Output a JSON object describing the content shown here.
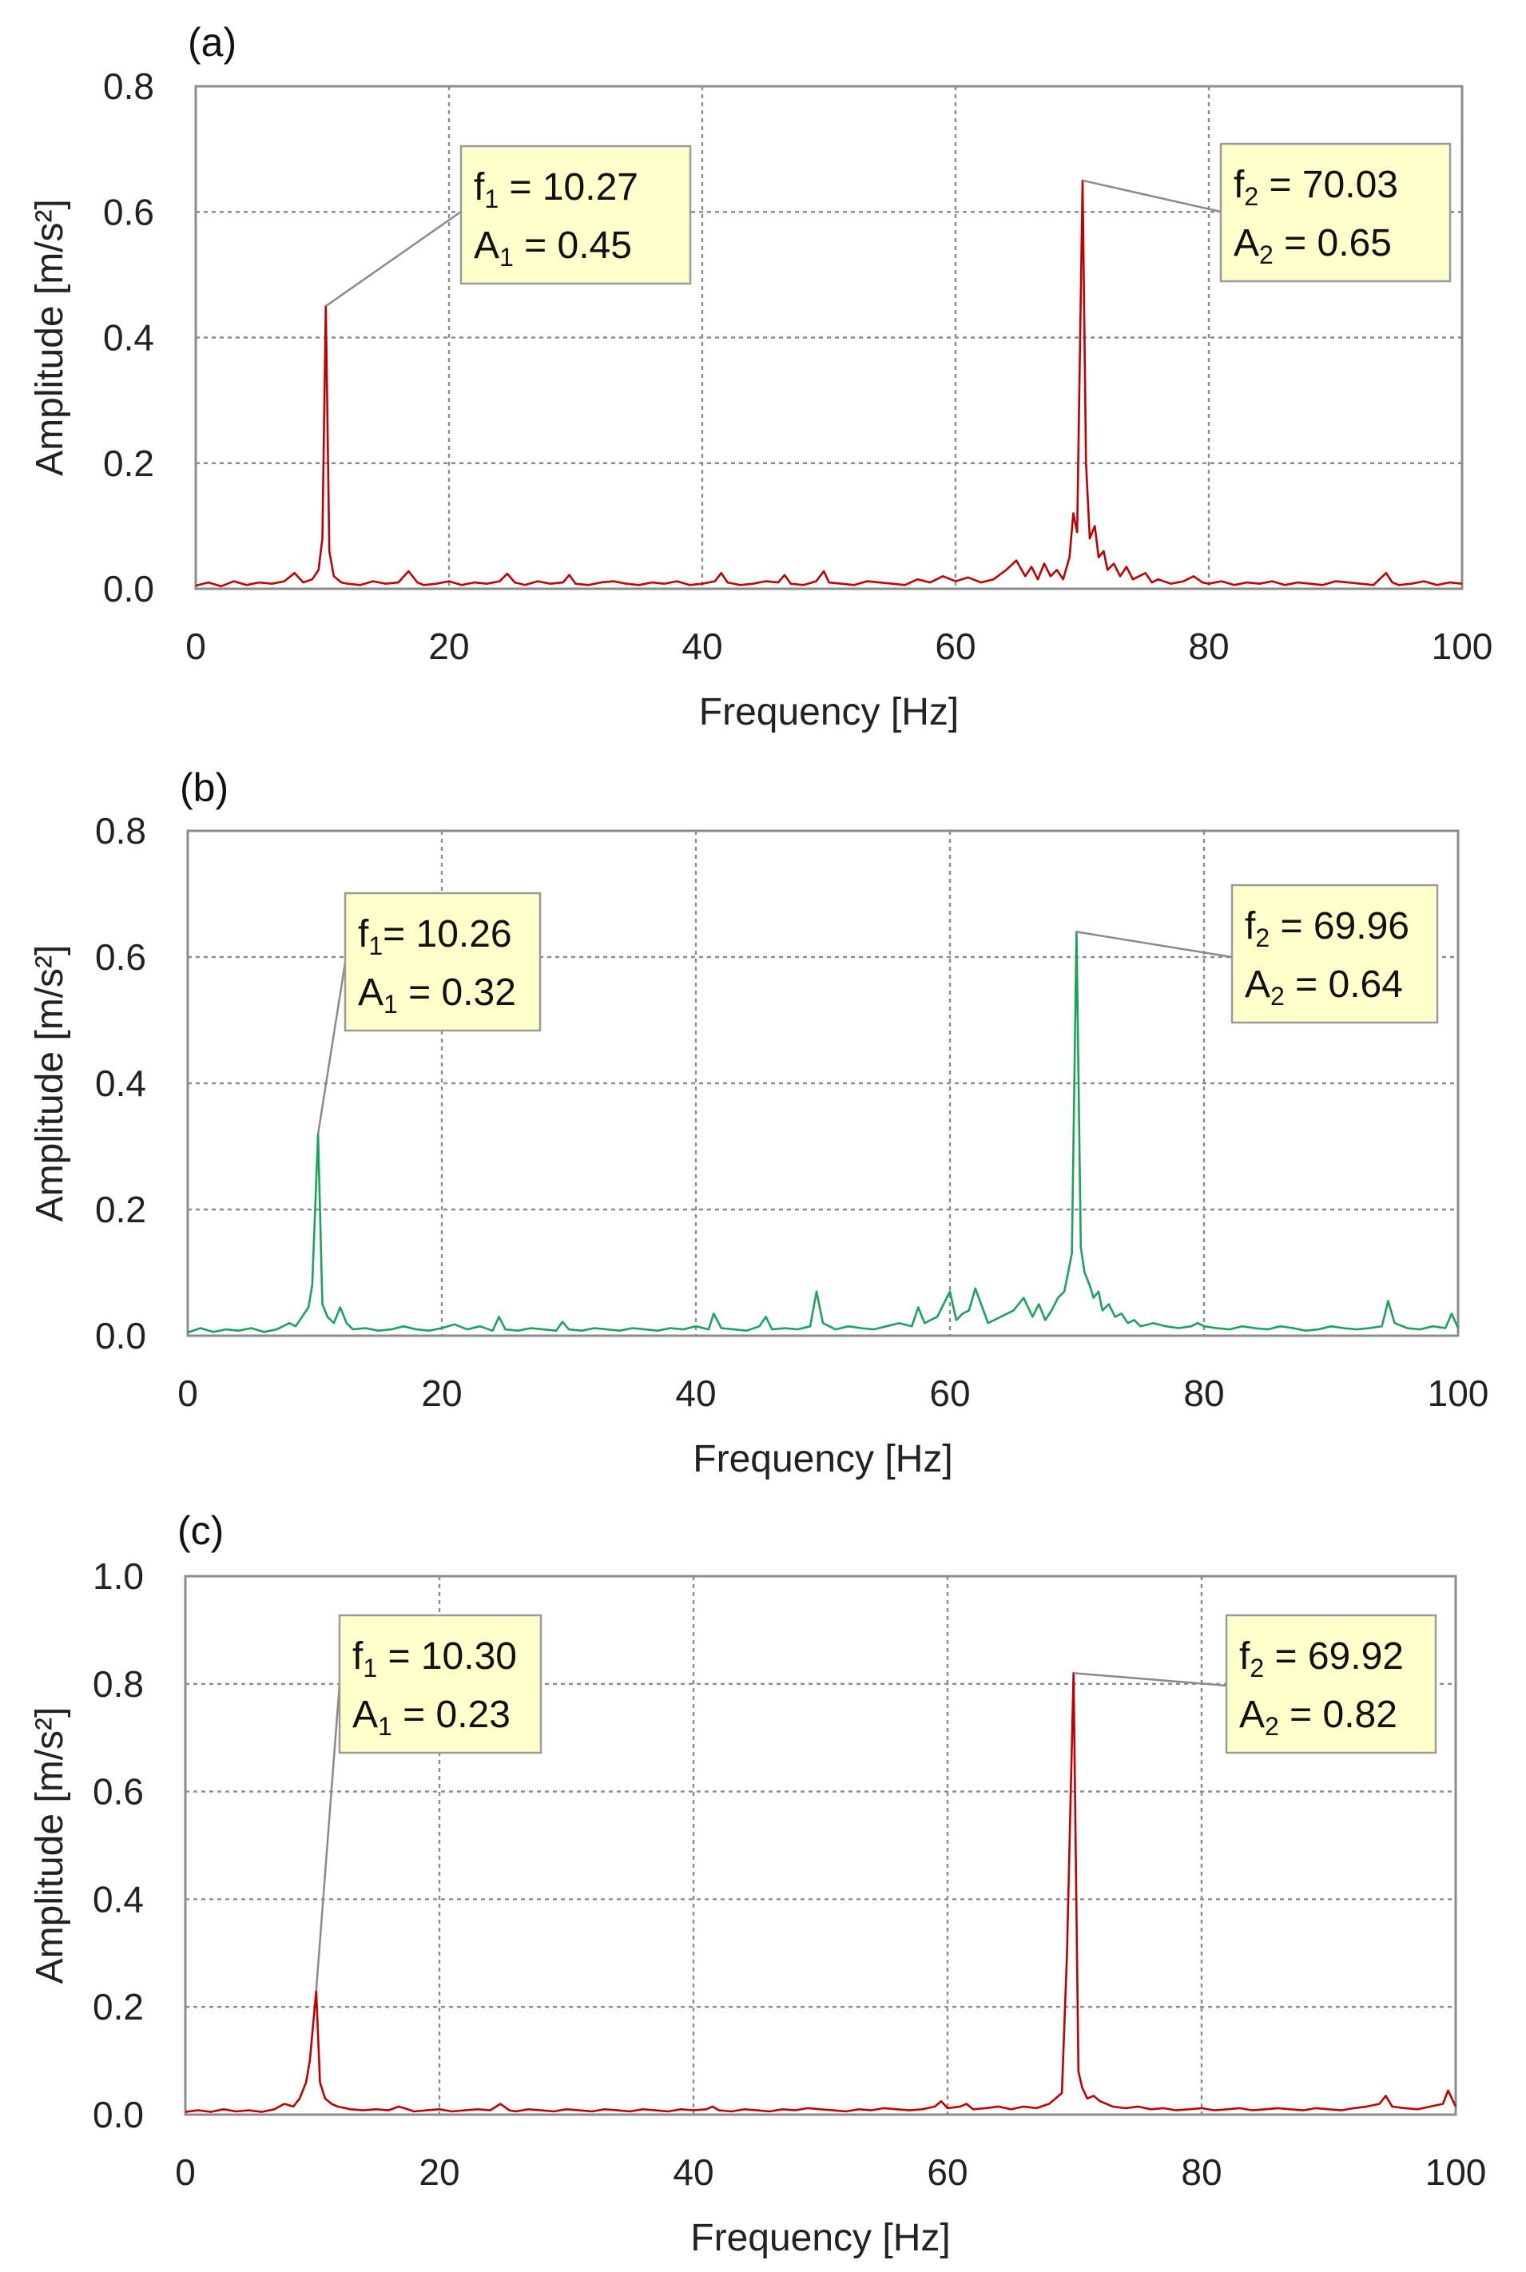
{
  "chart_data": [
    {
      "type": "line",
      "panel_label": "(a)",
      "xlabel": "Frequency [Hz]",
      "ylabel": "Amplitude [m/s²]",
      "xlim": [
        0,
        100
      ],
      "ylim": [
        0,
        0.8
      ],
      "x_ticks": [
        0,
        20,
        40,
        60,
        80,
        100
      ],
      "x_tick_labels": [
        "0",
        "20",
        "40",
        "60",
        "80",
        "100"
      ],
      "y_ticks": [
        0,
        0.2,
        0.4,
        0.6,
        0.8
      ],
      "y_tick_labels": [
        "0.0",
        "0.2",
        "0.4",
        "0.6",
        "0.8"
      ],
      "grid": true,
      "color": "#c00000",
      "series": [
        {
          "x": [
            0,
            1,
            2,
            3,
            4,
            5,
            6,
            7,
            7.8,
            8.5,
            9.2,
            9.7,
            10,
            10.27,
            10.55,
            10.9,
            11.5,
            12,
            13,
            14,
            15,
            16,
            16.8,
            17.5,
            18,
            19,
            20,
            21,
            22,
            23,
            24,
            24.6,
            25.2,
            26,
            27,
            28,
            29,
            29.5,
            30,
            31,
            32,
            33,
            34,
            35,
            36,
            37,
            38,
            39,
            40,
            41,
            41.5,
            42,
            43,
            44,
            45,
            46,
            46.5,
            47,
            48,
            49,
            49.6,
            50,
            51,
            52,
            53,
            54,
            55,
            56,
            57,
            58,
            59,
            60,
            61,
            62,
            63,
            64,
            64.8,
            65.5,
            66,
            66.5,
            67,
            67.5,
            68,
            68.5,
            69,
            69.3,
            69.6,
            70.03,
            70.3,
            70.6,
            71,
            71.3,
            71.7,
            72,
            72.5,
            73,
            73.5,
            74,
            75,
            75.5,
            76,
            77,
            78,
            78.8,
            79.5,
            80,
            81,
            82,
            83,
            84,
            85,
            86,
            87,
            88,
            89,
            90,
            91,
            92,
            93,
            94,
            94.5,
            95,
            96,
            97,
            98,
            99,
            100
          ],
          "y": [
            0.005,
            0.01,
            0.004,
            0.012,
            0.006,
            0.01,
            0.008,
            0.012,
            0.025,
            0.01,
            0.015,
            0.03,
            0.08,
            0.45,
            0.06,
            0.02,
            0.01,
            0.008,
            0.006,
            0.012,
            0.008,
            0.01,
            0.028,
            0.01,
            0.006,
            0.008,
            0.012,
            0.006,
            0.01,
            0.008,
            0.012,
            0.024,
            0.01,
            0.006,
            0.012,
            0.008,
            0.01,
            0.022,
            0.008,
            0.006,
            0.01,
            0.012,
            0.008,
            0.006,
            0.01,
            0.008,
            0.012,
            0.006,
            0.008,
            0.012,
            0.025,
            0.01,
            0.006,
            0.008,
            0.012,
            0.01,
            0.022,
            0.008,
            0.006,
            0.012,
            0.028,
            0.01,
            0.008,
            0.006,
            0.012,
            0.01,
            0.008,
            0.006,
            0.015,
            0.01,
            0.02,
            0.012,
            0.018,
            0.01,
            0.015,
            0.03,
            0.045,
            0.02,
            0.035,
            0.015,
            0.04,
            0.02,
            0.03,
            0.015,
            0.05,
            0.12,
            0.09,
            0.65,
            0.2,
            0.08,
            0.1,
            0.05,
            0.06,
            0.03,
            0.04,
            0.02,
            0.035,
            0.015,
            0.025,
            0.01,
            0.015,
            0.008,
            0.012,
            0.02,
            0.01,
            0.008,
            0.012,
            0.006,
            0.01,
            0.008,
            0.012,
            0.006,
            0.01,
            0.008,
            0.006,
            0.012,
            0.01,
            0.008,
            0.006,
            0.025,
            0.01,
            0.006,
            0.008,
            0.012,
            0.006,
            0.01,
            0.008
          ]
        }
      ],
      "annotations": [
        {
          "f_sub": "1",
          "f_text": " = 10.27",
          "a_sub": "1",
          "a_text": " = 0.45",
          "peak_x": 10.27,
          "peak_y": 0.45
        },
        {
          "f_sub": "2",
          "f_text": " = 70.03",
          "a_sub": "2",
          "a_text": " = 0.65",
          "peak_x": 70.03,
          "peak_y": 0.65
        }
      ]
    },
    {
      "type": "line",
      "panel_label": "(b)",
      "xlabel": "Frequency [Hz]",
      "ylabel": "Amplitude [m/s²]",
      "xlim": [
        0,
        100
      ],
      "ylim": [
        0,
        0.8
      ],
      "x_ticks": [
        0,
        20,
        40,
        60,
        80,
        100
      ],
      "x_tick_labels": [
        "0",
        "20",
        "40",
        "60",
        "80",
        "100"
      ],
      "y_ticks": [
        0,
        0.2,
        0.4,
        0.6,
        0.8
      ],
      "y_tick_labels": [
        "0.0",
        "0.2",
        "0.4",
        "0.6",
        "0.8"
      ],
      "grid": true,
      "color": "#1aa35a",
      "series": [
        {
          "x": [
            0,
            1,
            2,
            3,
            4,
            5,
            6,
            7,
            8,
            8.5,
            9,
            9.5,
            9.8,
            10.26,
            10.6,
            11,
            11.5,
            12,
            12.5,
            13,
            14,
            15,
            16,
            17,
            18,
            19,
            20,
            21,
            22,
            23,
            24,
            24.5,
            25,
            26,
            27,
            28,
            29,
            29.5,
            30,
            31,
            32,
            33,
            34,
            35,
            36,
            37,
            38,
            39,
            40,
            41,
            41.4,
            42,
            43,
            44,
            45,
            45.5,
            46,
            47,
            48,
            49,
            49.5,
            50,
            51,
            52,
            53,
            54,
            55,
            56,
            57,
            57.5,
            58,
            59,
            59.5,
            60,
            60.5,
            61,
            61.5,
            62,
            63,
            64,
            65,
            65.8,
            66.5,
            67,
            67.5,
            68,
            68.5,
            69,
            69.3,
            69.6,
            69.96,
            70.3,
            70.6,
            71,
            71.3,
            71.7,
            72,
            72.5,
            73,
            73.5,
            74,
            74.5,
            75,
            76,
            77,
            78,
            79,
            79.5,
            80,
            81,
            82,
            83,
            84,
            85,
            86,
            87,
            88,
            89,
            90,
            91,
            92,
            93,
            94,
            94.5,
            95,
            96,
            97,
            98,
            99,
            99.5,
            100
          ],
          "y": [
            0.005,
            0.012,
            0.006,
            0.01,
            0.008,
            0.012,
            0.006,
            0.01,
            0.02,
            0.015,
            0.03,
            0.045,
            0.08,
            0.32,
            0.05,
            0.03,
            0.02,
            0.045,
            0.02,
            0.01,
            0.012,
            0.008,
            0.01,
            0.015,
            0.01,
            0.008,
            0.012,
            0.018,
            0.01,
            0.015,
            0.008,
            0.03,
            0.01,
            0.008,
            0.012,
            0.01,
            0.008,
            0.022,
            0.01,
            0.008,
            0.012,
            0.01,
            0.008,
            0.012,
            0.01,
            0.008,
            0.012,
            0.01,
            0.015,
            0.01,
            0.035,
            0.012,
            0.01,
            0.008,
            0.015,
            0.03,
            0.01,
            0.012,
            0.01,
            0.015,
            0.07,
            0.02,
            0.01,
            0.015,
            0.012,
            0.01,
            0.015,
            0.02,
            0.015,
            0.045,
            0.02,
            0.03,
            0.05,
            0.07,
            0.025,
            0.035,
            0.04,
            0.075,
            0.02,
            0.03,
            0.04,
            0.06,
            0.03,
            0.05,
            0.025,
            0.04,
            0.06,
            0.07,
            0.1,
            0.13,
            0.64,
            0.14,
            0.1,
            0.08,
            0.06,
            0.07,
            0.04,
            0.05,
            0.03,
            0.035,
            0.02,
            0.025,
            0.015,
            0.02,
            0.015,
            0.012,
            0.015,
            0.02,
            0.015,
            0.012,
            0.01,
            0.015,
            0.012,
            0.01,
            0.015,
            0.012,
            0.008,
            0.01,
            0.015,
            0.012,
            0.01,
            0.012,
            0.015,
            0.055,
            0.02,
            0.012,
            0.01,
            0.015,
            0.012,
            0.035,
            0.012
          ]
        }
      ],
      "annotations": [
        {
          "f_sub": "1",
          "f_text": "= 10.26",
          "a_sub": "1",
          "a_text": " = 0.32",
          "peak_x": 10.26,
          "peak_y": 0.32
        },
        {
          "f_sub": "2",
          "f_text": " = 69.96",
          "a_sub": "2",
          "a_text": " = 0.64",
          "peak_x": 69.96,
          "peak_y": 0.64
        }
      ]
    },
    {
      "type": "line",
      "panel_label": "(c)",
      "xlabel": "Frequency [Hz]",
      "ylabel": "Amplitude [m/s²]",
      "xlim": [
        0,
        100
      ],
      "ylim": [
        0,
        1.0
      ],
      "x_ticks": [
        0,
        20,
        40,
        60,
        80,
        100
      ],
      "x_tick_labels": [
        "0",
        "20",
        "40",
        "60",
        "80",
        "100"
      ],
      "y_ticks": [
        0,
        0.2,
        0.4,
        0.6,
        0.8,
        1.0
      ],
      "y_tick_labels": [
        "0.0",
        "0.2",
        "0.4",
        "0.6",
        "0.8",
        "1.0"
      ],
      "grid": true,
      "color": "#c00000",
      "series": [
        {
          "x": [
            0,
            1,
            2,
            3,
            4,
            5,
            6,
            7,
            7.8,
            8.5,
            9,
            9.5,
            9.8,
            10.3,
            10.6,
            11,
            11.5,
            12,
            13,
            14,
            15,
            16,
            16.8,
            17.5,
            18,
            19,
            20,
            21,
            22,
            23,
            24,
            24.8,
            25.5,
            26,
            27,
            28,
            29,
            30,
            31,
            32,
            33,
            34,
            35,
            36,
            37,
            38,
            39,
            40,
            41,
            41.5,
            42,
            43,
            44,
            45,
            46,
            47,
            48,
            49,
            50,
            51,
            52,
            53,
            54,
            55,
            56,
            57,
            58,
            59,
            59.5,
            60,
            61,
            61.5,
            62,
            63,
            64,
            65,
            66,
            67,
            68,
            68.5,
            69,
            69.4,
            69.92,
            70.3,
            70.6,
            71,
            71.5,
            72,
            72.5,
            73,
            74,
            75,
            76,
            77,
            78,
            79,
            80,
            81,
            82,
            83,
            84,
            85,
            86,
            87,
            88,
            89,
            90,
            91,
            92,
            93,
            94,
            94.5,
            95,
            96,
            97,
            98,
            99,
            99.4,
            100
          ],
          "y": [
            0.005,
            0.008,
            0.005,
            0.01,
            0.006,
            0.008,
            0.005,
            0.01,
            0.02,
            0.015,
            0.03,
            0.06,
            0.1,
            0.23,
            0.06,
            0.03,
            0.02,
            0.015,
            0.01,
            0.008,
            0.01,
            0.008,
            0.015,
            0.01,
            0.006,
            0.008,
            0.01,
            0.006,
            0.008,
            0.01,
            0.008,
            0.02,
            0.008,
            0.006,
            0.01,
            0.008,
            0.006,
            0.01,
            0.008,
            0.006,
            0.01,
            0.008,
            0.006,
            0.01,
            0.008,
            0.006,
            0.01,
            0.008,
            0.01,
            0.015,
            0.008,
            0.006,
            0.01,
            0.008,
            0.006,
            0.01,
            0.008,
            0.012,
            0.01,
            0.008,
            0.006,
            0.01,
            0.008,
            0.012,
            0.01,
            0.008,
            0.01,
            0.015,
            0.025,
            0.012,
            0.015,
            0.02,
            0.01,
            0.012,
            0.015,
            0.01,
            0.015,
            0.012,
            0.02,
            0.03,
            0.04,
            0.3,
            0.82,
            0.08,
            0.05,
            0.03,
            0.035,
            0.025,
            0.02,
            0.015,
            0.012,
            0.015,
            0.01,
            0.012,
            0.008,
            0.01,
            0.012,
            0.008,
            0.01,
            0.012,
            0.008,
            0.01,
            0.012,
            0.01,
            0.008,
            0.012,
            0.01,
            0.008,
            0.012,
            0.015,
            0.02,
            0.035,
            0.015,
            0.012,
            0.01,
            0.015,
            0.02,
            0.045,
            0.015
          ]
        }
      ],
      "annotations": [
        {
          "f_sub": "1",
          "f_text": " = 10.30",
          "a_sub": "1",
          "a_text": " = 0.23",
          "peak_x": 10.3,
          "peak_y": 0.23
        },
        {
          "f_sub": "2",
          "f_text": " = 69.92",
          "a_sub": "2",
          "a_text": " = 0.82",
          "peak_x": 69.92,
          "peak_y": 0.82
        }
      ]
    }
  ]
}
